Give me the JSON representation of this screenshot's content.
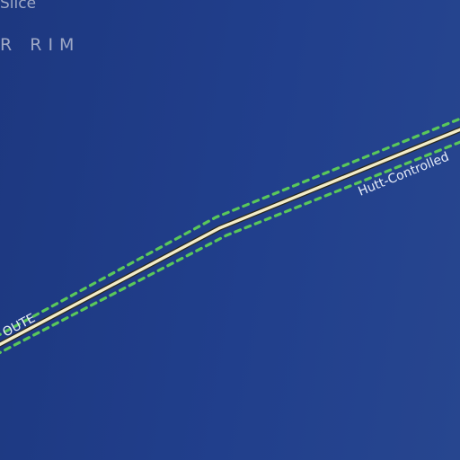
{
  "map": {
    "background_color": "#213f8c",
    "region_labels": {
      "sector": "Slice",
      "territory": "R RIM"
    },
    "route": {
      "left_label": "OUTE",
      "right_label": "Hutt-Controlled",
      "line_color": "#f3ecc8",
      "boundary_color": "#5ac85a"
    }
  }
}
